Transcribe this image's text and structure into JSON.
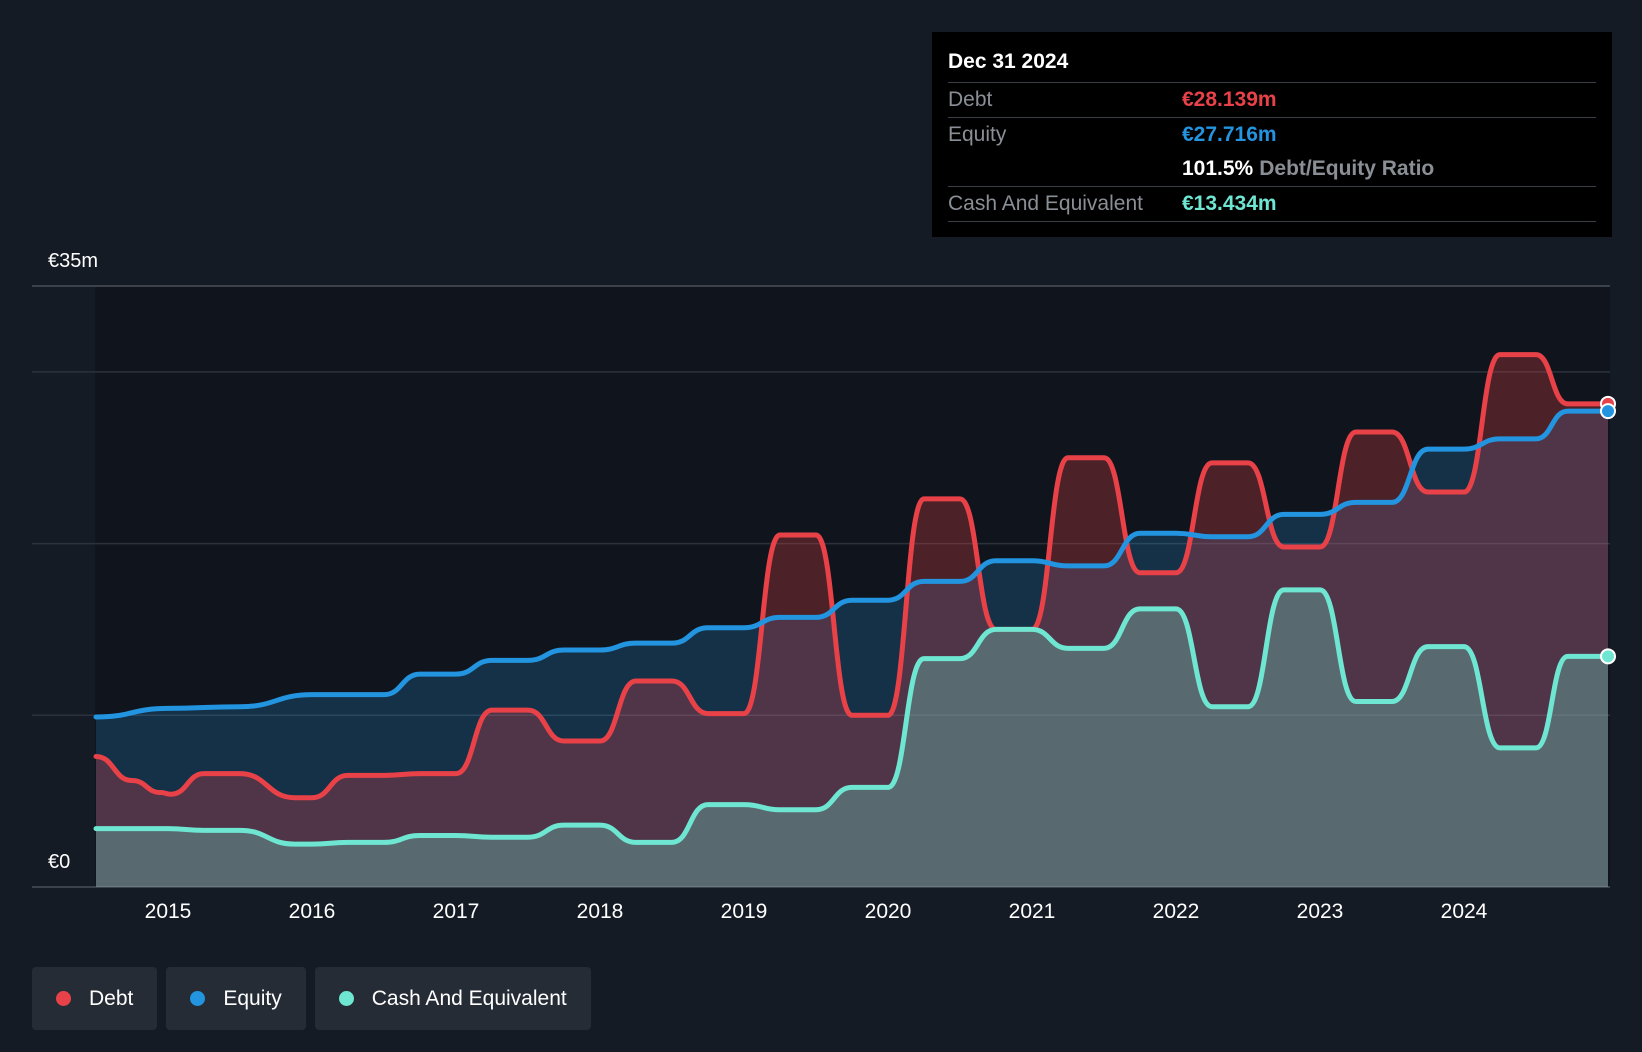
{
  "tooltip": {
    "date": "Dec 31 2024",
    "debt_label": "Debt",
    "debt_value": "€28.139m",
    "equity_label": "Equity",
    "equity_value": "€27.716m",
    "ratio_value": "101.5%",
    "ratio_label": "Debt/Equity Ratio",
    "cash_label": "Cash And Equivalent",
    "cash_value": "€13.434m"
  },
  "legend": {
    "debt": "Debt",
    "equity": "Equity",
    "cash": "Cash And Equivalent"
  },
  "colors": {
    "background": "#151b24",
    "debt": "#e84248",
    "equity": "#2394df",
    "cash": "#6ee6d2"
  },
  "chart_data": {
    "type": "area",
    "y_unit": "€m",
    "ylim": [
      0,
      35
    ],
    "yticks": [
      {
        "value": 35,
        "label": "€35m"
      },
      {
        "value": 0,
        "label": "€0"
      }
    ],
    "grid": true,
    "x_tick_labels": [
      "2015",
      "2016",
      "2017",
      "2018",
      "2019",
      "2020",
      "2021",
      "2022",
      "2023",
      "2024"
    ],
    "xlim": [
      2014.45,
      2025.0
    ],
    "legend_position": "bottom-left",
    "series": [
      {
        "name": "Debt",
        "points": [
          [
            2014.5,
            7.6
          ],
          [
            2014.75,
            6.2
          ],
          [
            2014.95,
            5.5
          ],
          [
            2015.02,
            5.4
          ],
          [
            2015.25,
            6.6
          ],
          [
            2015.5,
            6.6
          ],
          [
            2015.88,
            5.2
          ],
          [
            2016.0,
            5.2
          ],
          [
            2016.25,
            6.5
          ],
          [
            2016.5,
            6.5
          ],
          [
            2016.75,
            6.6
          ],
          [
            2017.0,
            6.6
          ],
          [
            2017.25,
            10.3
          ],
          [
            2017.5,
            10.3
          ],
          [
            2017.75,
            8.5
          ],
          [
            2018.0,
            8.5
          ],
          [
            2018.25,
            12.0
          ],
          [
            2018.5,
            12.0
          ],
          [
            2018.75,
            10.1
          ],
          [
            2019.0,
            10.1
          ],
          [
            2019.25,
            20.5
          ],
          [
            2019.5,
            20.5
          ],
          [
            2019.75,
            10.0
          ],
          [
            2020.0,
            10.0
          ],
          [
            2020.25,
            22.6
          ],
          [
            2020.5,
            22.6
          ],
          [
            2020.75,
            15.0
          ],
          [
            2021.0,
            15.0
          ],
          [
            2021.25,
            25.0
          ],
          [
            2021.5,
            25.0
          ],
          [
            2021.75,
            18.3
          ],
          [
            2022.0,
            18.3
          ],
          [
            2022.25,
            24.7
          ],
          [
            2022.5,
            24.7
          ],
          [
            2022.75,
            19.8
          ],
          [
            2023.0,
            19.8
          ],
          [
            2023.25,
            26.5
          ],
          [
            2023.5,
            26.5
          ],
          [
            2023.75,
            23.0
          ],
          [
            2024.0,
            23.0
          ],
          [
            2024.25,
            31.0
          ],
          [
            2024.5,
            31.0
          ],
          [
            2024.72,
            28.139
          ],
          [
            2025.0,
            28.139
          ]
        ]
      },
      {
        "name": "Equity",
        "points": [
          [
            2014.5,
            9.9
          ],
          [
            2015.0,
            10.4
          ],
          [
            2015.5,
            10.5
          ],
          [
            2016.0,
            11.2
          ],
          [
            2016.5,
            11.2
          ],
          [
            2016.75,
            12.4
          ],
          [
            2017.0,
            12.4
          ],
          [
            2017.25,
            13.2
          ],
          [
            2017.5,
            13.2
          ],
          [
            2017.75,
            13.8
          ],
          [
            2018.0,
            13.8
          ],
          [
            2018.25,
            14.2
          ],
          [
            2018.5,
            14.2
          ],
          [
            2018.75,
            15.1
          ],
          [
            2019.0,
            15.1
          ],
          [
            2019.25,
            15.7
          ],
          [
            2019.5,
            15.7
          ],
          [
            2019.75,
            16.7
          ],
          [
            2020.0,
            16.7
          ],
          [
            2020.25,
            17.8
          ],
          [
            2020.5,
            17.8
          ],
          [
            2020.75,
            19.0
          ],
          [
            2021.0,
            19.0
          ],
          [
            2021.25,
            18.7
          ],
          [
            2021.5,
            18.7
          ],
          [
            2021.75,
            20.6
          ],
          [
            2022.0,
            20.6
          ],
          [
            2022.25,
            20.4
          ],
          [
            2022.5,
            20.4
          ],
          [
            2022.75,
            21.7
          ],
          [
            2023.0,
            21.7
          ],
          [
            2023.25,
            22.4
          ],
          [
            2023.5,
            22.4
          ],
          [
            2023.75,
            25.5
          ],
          [
            2024.0,
            25.5
          ],
          [
            2024.25,
            26.1
          ],
          [
            2024.5,
            26.1
          ],
          [
            2024.72,
            27.716
          ],
          [
            2025.0,
            27.716
          ]
        ]
      },
      {
        "name": "Cash And Equivalent",
        "points": [
          [
            2014.5,
            3.4
          ],
          [
            2015.0,
            3.4
          ],
          [
            2015.25,
            3.3
          ],
          [
            2015.5,
            3.3
          ],
          [
            2015.88,
            2.5
          ],
          [
            2016.0,
            2.5
          ],
          [
            2016.25,
            2.6
          ],
          [
            2016.5,
            2.6
          ],
          [
            2016.75,
            3.0
          ],
          [
            2017.0,
            3.0
          ],
          [
            2017.25,
            2.9
          ],
          [
            2017.5,
            2.9
          ],
          [
            2017.75,
            3.6
          ],
          [
            2018.0,
            3.6
          ],
          [
            2018.25,
            2.6
          ],
          [
            2018.5,
            2.6
          ],
          [
            2018.75,
            4.8
          ],
          [
            2019.0,
            4.8
          ],
          [
            2019.25,
            4.5
          ],
          [
            2019.5,
            4.5
          ],
          [
            2019.75,
            5.8
          ],
          [
            2020.0,
            5.8
          ],
          [
            2020.25,
            13.3
          ],
          [
            2020.5,
            13.3
          ],
          [
            2020.75,
            15.0
          ],
          [
            2021.0,
            15.0
          ],
          [
            2021.25,
            13.9
          ],
          [
            2021.5,
            13.9
          ],
          [
            2021.75,
            16.2
          ],
          [
            2022.0,
            16.2
          ],
          [
            2022.25,
            10.5
          ],
          [
            2022.5,
            10.5
          ],
          [
            2022.75,
            17.3
          ],
          [
            2023.0,
            17.3
          ],
          [
            2023.25,
            10.8
          ],
          [
            2023.5,
            10.8
          ],
          [
            2023.75,
            14.0
          ],
          [
            2024.0,
            14.0
          ],
          [
            2024.25,
            8.1
          ],
          [
            2024.5,
            8.1
          ],
          [
            2024.72,
            13.434
          ],
          [
            2025.0,
            13.434
          ]
        ]
      }
    ]
  }
}
